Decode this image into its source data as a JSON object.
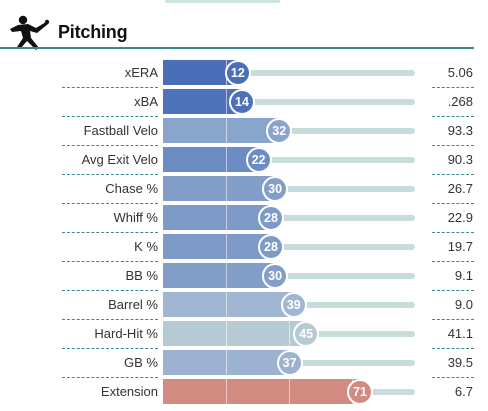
{
  "section": {
    "title": "Pitching",
    "icon": "pitcher-icon"
  },
  "metrics": [
    {
      "label": "xERA",
      "percentile": "12",
      "value": "5.06",
      "color": "#4a6fb8"
    },
    {
      "label": "xBA",
      "percentile": "14",
      "value": ".268",
      "color": "#4d72b9"
    },
    {
      "label": "Fastball Velo",
      "percentile": "32",
      "value": "93.3",
      "color": "#8aa5cb"
    },
    {
      "label": "Avg Exit Velo",
      "percentile": "22",
      "value": "90.3",
      "color": "#6c8dc3"
    },
    {
      "label": "Chase %",
      "percentile": "30",
      "value": "26.7",
      "color": "#839fc9"
    },
    {
      "label": "Whiff %",
      "percentile": "28",
      "value": "22.9",
      "color": "#7e9bc8"
    },
    {
      "label": "K %",
      "percentile": "28",
      "value": "19.7",
      "color": "#7e9bc8"
    },
    {
      "label": "BB %",
      "percentile": "30",
      "value": "9.1",
      "color": "#839fc9"
    },
    {
      "label": "Barrel %",
      "percentile": "39",
      "value": "9.0",
      "color": "#a0b6d2"
    },
    {
      "label": "Hard-Hit %",
      "percentile": "45",
      "value": "41.1",
      "color": "#b6cad3"
    },
    {
      "label": "GB %",
      "percentile": "37",
      "value": "39.5",
      "color": "#9cb2d1"
    },
    {
      "label": "Extension",
      "percentile": "71",
      "value": "6.7",
      "color": "#d28b80"
    }
  ]
}
